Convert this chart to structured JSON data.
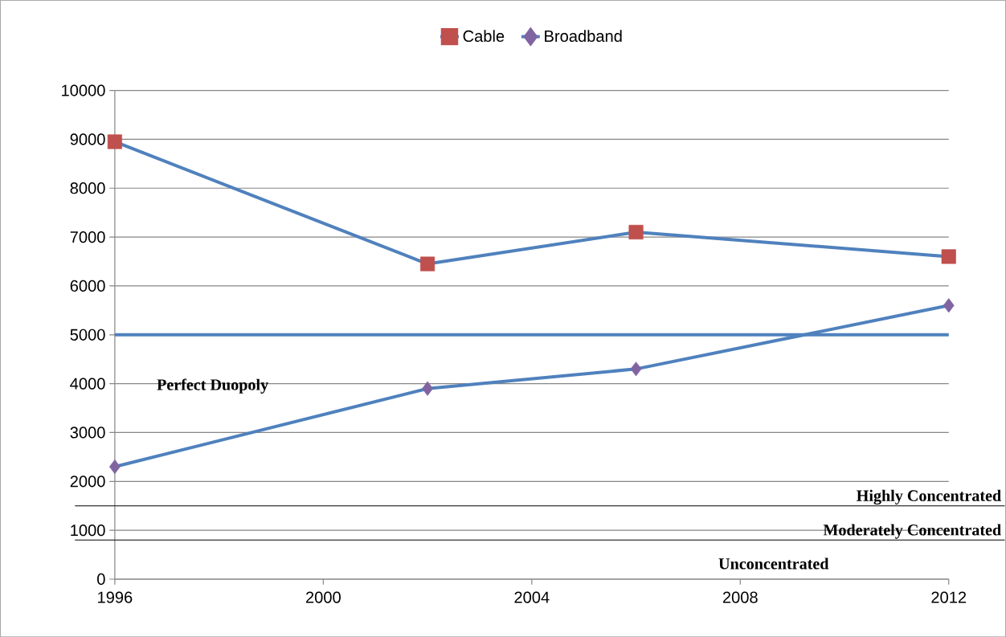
{
  "chart_data": {
    "type": "line",
    "x": [
      1996,
      2002,
      2006,
      2012
    ],
    "series": [
      {
        "name": "Cable",
        "color": "#4f81bd",
        "colors": [
          "#c0504d",
          "#c0504d",
          "#c0504d",
          "#c0504d"
        ],
        "marker": "square",
        "values": [
          8950,
          6450,
          7100,
          6600
        ]
      },
      {
        "name": "Broadband",
        "color": "#4f81bd",
        "colors": [
          "#8064a2",
          "#8064a2",
          "#8064a2",
          "#8064a2"
        ],
        "marker": "diamond",
        "values": [
          2300,
          3900,
          4300,
          5600
        ]
      }
    ],
    "xlim": [
      1996,
      2012
    ],
    "xticks": [
      1996,
      2000,
      2004,
      2008,
      2012
    ],
    "ylim": [
      0,
      10000
    ],
    "yticks": [
      0,
      1000,
      2000,
      3000,
      4000,
      5000,
      6000,
      7000,
      8000,
      9000,
      10000
    ],
    "ref_lines": [
      {
        "axis": "y",
        "value": 5000,
        "label": "Perfect Duopoly",
        "color": "#4f81bd"
      },
      {
        "axis": "y",
        "value": 1500,
        "label": "Highly Concentrated",
        "color": "#000000"
      },
      {
        "axis": "y",
        "value": 800,
        "label": "Moderately Concentrated",
        "color": "#000000"
      }
    ],
    "annotations": [
      "Unconcentrated"
    ],
    "grid": "y",
    "legend": "top",
    "line_style": "solid"
  }
}
